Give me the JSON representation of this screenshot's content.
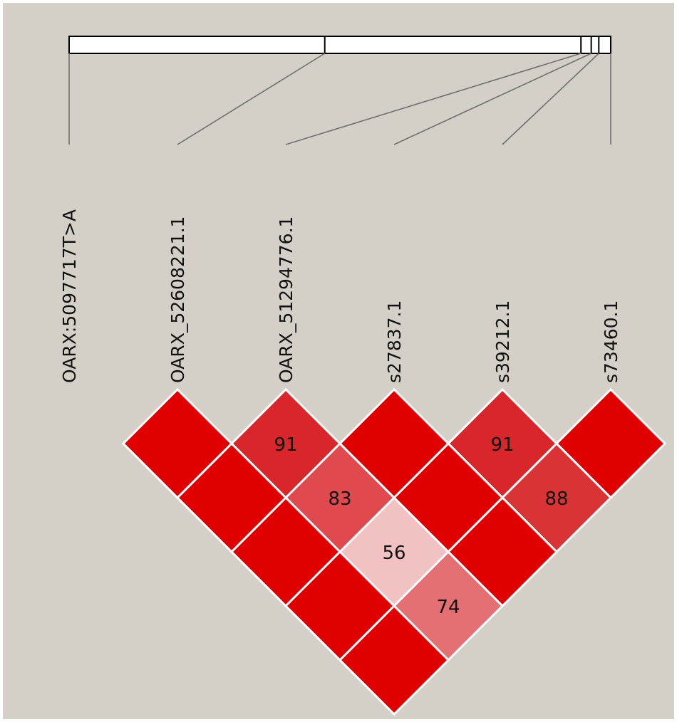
{
  "colors": {
    "background": "#d4d0c8",
    "border": "#ffffff",
    "strong_ld": "#e00000",
    "track_fill": "#ffffff",
    "line": "#707070"
  },
  "chart_data": {
    "type": "heatmap",
    "markers": [
      "OARX:5097717T>A",
      "OARX_52608221.1",
      "OARX_51294776.1",
      "s27837.1",
      "s39212.1",
      "s73460.1"
    ],
    "cells": [
      {
        "i": 0,
        "j": 1,
        "value": null,
        "color": "#e00000"
      },
      {
        "i": 1,
        "j": 2,
        "value": 91,
        "color": "#d8262a"
      },
      {
        "i": 2,
        "j": 3,
        "value": null,
        "color": "#e00000"
      },
      {
        "i": 3,
        "j": 4,
        "value": 91,
        "color": "#d8262a"
      },
      {
        "i": 4,
        "j": 5,
        "value": null,
        "color": "#e00000"
      },
      {
        "i": 0,
        "j": 2,
        "value": null,
        "color": "#e00000"
      },
      {
        "i": 1,
        "j": 3,
        "value": 83,
        "color": "#e04a4e"
      },
      {
        "i": 2,
        "j": 4,
        "value": null,
        "color": "#e00000"
      },
      {
        "i": 3,
        "j": 5,
        "value": 88,
        "color": "#d93336"
      },
      {
        "i": 0,
        "j": 3,
        "value": null,
        "color": "#e00000"
      },
      {
        "i": 1,
        "j": 4,
        "value": 56,
        "color": "#f2c2c2"
      },
      {
        "i": 2,
        "j": 5,
        "value": null,
        "color": "#e00000"
      },
      {
        "i": 0,
        "j": 4,
        "value": null,
        "color": "#e00000"
      },
      {
        "i": 1,
        "j": 5,
        "value": 74,
        "color": "#e47073"
      },
      {
        "i": 0,
        "j": 5,
        "value": null,
        "color": "#e00000"
      }
    ],
    "marker_positions": [
      0.0,
      0.472,
      0.945,
      0.964,
      0.978,
      1.0
    ]
  }
}
